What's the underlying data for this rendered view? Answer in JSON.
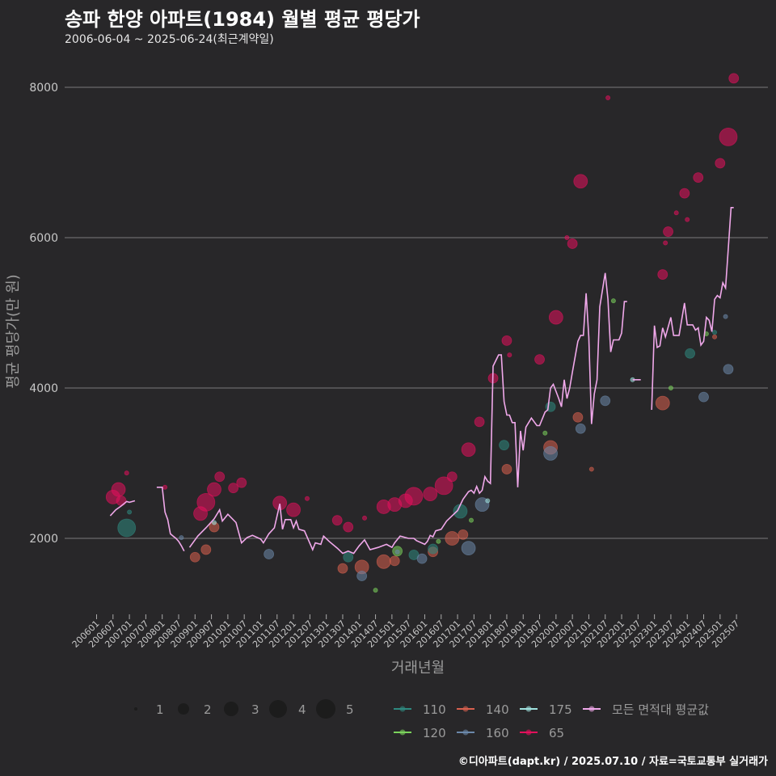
{
  "header": {
    "title": "송파 한양 아파트(1984) 월별 평균 평당가",
    "subtitle": "2006-06-04 ~ 2025-06-24(최근계약일)"
  },
  "footer": "©디아파트(dapt.kr) / 2025.07.10 / 자료=국토교통부 실거래가",
  "chart_data": {
    "type": "scatter",
    "title": "송파 한양 아파트(1984) 월별 평균 평당가",
    "xlabel": "거래년월",
    "ylabel": "평균 평당가(만 원)",
    "ylim": [
      1000,
      8300
    ],
    "xlim": [
      "2005-12",
      "2025-08"
    ],
    "grid": "horizontal",
    "y_ticks": [
      "2000",
      "4000",
      "6000",
      "8000"
    ],
    "x_ticks": [
      "200601",
      "200607",
      "200701",
      "200707",
      "200801",
      "200807",
      "200901",
      "200907",
      "201001",
      "201007",
      "201101",
      "201107",
      "201201",
      "201207",
      "201301",
      "201307",
      "201401",
      "201407",
      "201501",
      "201507",
      "201601",
      "201607",
      "201701",
      "201707",
      "201801",
      "201807",
      "201901",
      "201907",
      "202001",
      "202007",
      "202101",
      "202107",
      "202201",
      "202207",
      "202301",
      "202307",
      "202401",
      "202407",
      "202501",
      "202507"
    ],
    "size_legend": {
      "labels": [
        "1",
        "2",
        "3",
        "4",
        "5"
      ],
      "values": [
        1,
        2,
        3,
        4,
        5
      ]
    },
    "area_legend": [
      {
        "name": "110",
        "color": "#2e8a80"
      },
      {
        "name": "140",
        "color": "#d9604f"
      },
      {
        "name": "175",
        "color": "#a0e3e0"
      },
      {
        "name": "모든 면적대 평균값",
        "color": "#f0a8ea"
      },
      {
        "name": "120",
        "color": "#7bd35c"
      },
      {
        "name": "160",
        "color": "#6b88aa"
      },
      {
        "name": "65",
        "color": "#e3105c"
      }
    ],
    "avg_line": {
      "name": "모든 면적대 평균값",
      "points": [
        [
          "2006-06",
          2300
        ],
        [
          "2006-08",
          2380
        ],
        [
          "2006-10",
          2430
        ],
        [
          "2006-12",
          2490
        ],
        [
          "2007-01",
          2480
        ],
        [
          "2007-03",
          2500
        ],
        null,
        [
          "2007-11",
          2680
        ],
        [
          "2007-12",
          2680
        ],
        [
          "2008-01",
          2680
        ],
        [
          "2008-02",
          2350
        ],
        [
          "2008-03",
          2250
        ],
        [
          "2008-04",
          2060
        ],
        [
          "2008-05",
          2030
        ],
        [
          "2008-06",
          2000
        ],
        [
          "2008-07",
          1960
        ],
        [
          "2008-08",
          1900
        ],
        [
          "2008-09",
          1830
        ],
        null,
        [
          "2008-11",
          1880
        ],
        [
          "2009-02",
          2030
        ],
        [
          "2009-05",
          2140
        ],
        [
          "2009-08",
          2260
        ],
        [
          "2009-10",
          2380
        ],
        [
          "2009-11",
          2230
        ],
        [
          "2010-01",
          2320
        ],
        [
          "2010-04",
          2210
        ],
        [
          "2010-06",
          1940
        ],
        [
          "2010-08",
          2010
        ],
        [
          "2010-10",
          2040
        ],
        [
          "2011-01",
          1990
        ],
        [
          "2011-02",
          1940
        ],
        [
          "2011-04",
          2060
        ],
        [
          "2011-06",
          2140
        ],
        [
          "2011-08",
          2460
        ],
        [
          "2011-09",
          2120
        ],
        [
          "2011-10",
          2250
        ],
        [
          "2011-12",
          2250
        ],
        [
          "2012-01",
          2140
        ],
        [
          "2012-02",
          2230
        ],
        [
          "2012-03",
          2120
        ],
        [
          "2012-05",
          2100
        ],
        [
          "2012-08",
          1850
        ],
        [
          "2012-09",
          1940
        ],
        [
          "2012-11",
          1920
        ],
        [
          "2012-12",
          2030
        ],
        [
          "2013-02",
          1960
        ],
        [
          "2013-05",
          1870
        ],
        [
          "2013-07",
          1800
        ],
        [
          "2013-09",
          1830
        ],
        [
          "2013-11",
          1800
        ],
        [
          "2014-01",
          1900
        ],
        [
          "2014-03",
          1980
        ],
        [
          "2014-05",
          1850
        ],
        [
          "2014-08",
          1880
        ],
        [
          "2014-11",
          1920
        ],
        [
          "2015-01",
          1880
        ],
        [
          "2015-02",
          1940
        ],
        [
          "2015-04",
          2030
        ],
        [
          "2015-07",
          2000
        ],
        [
          "2015-09",
          2000
        ],
        [
          "2015-10",
          1970
        ],
        [
          "2016-01",
          1920
        ],
        [
          "2016-02",
          1960
        ],
        [
          "2016-03",
          2040
        ],
        [
          "2016-04",
          2020
        ],
        [
          "2016-05",
          2100
        ],
        [
          "2016-07",
          2120
        ],
        [
          "2016-09",
          2230
        ],
        [
          "2016-11",
          2300
        ],
        [
          "2017-01",
          2370
        ],
        [
          "2017-03",
          2520
        ],
        [
          "2017-05",
          2620
        ],
        [
          "2017-06",
          2640
        ],
        [
          "2017-07",
          2600
        ],
        [
          "2017-08",
          2690
        ],
        [
          "2017-09",
          2600
        ],
        [
          "2017-10",
          2640
        ],
        [
          "2017-11",
          2820
        ],
        [
          "2017-12",
          2760
        ],
        [
          "2018-01",
          2730
        ],
        [
          "2018-02",
          4290
        ],
        [
          "2018-04",
          4440
        ],
        [
          "2018-05",
          4440
        ],
        [
          "2018-06",
          3820
        ],
        [
          "2018-07",
          3640
        ],
        [
          "2018-08",
          3640
        ],
        [
          "2018-09",
          3540
        ],
        [
          "2018-10",
          3540
        ],
        [
          "2018-11",
          2680
        ],
        [
          "2018-12",
          3430
        ],
        [
          "2019-01",
          3170
        ],
        [
          "2019-02",
          3480
        ],
        [
          "2019-04",
          3600
        ],
        [
          "2019-06",
          3500
        ],
        [
          "2019-07",
          3500
        ],
        [
          "2019-09",
          3680
        ],
        [
          "2019-10",
          3710
        ],
        [
          "2019-11",
          4000
        ],
        [
          "2019-12",
          4050
        ],
        [
          "2020-02",
          3860
        ],
        [
          "2020-03",
          3750
        ],
        [
          "2020-04",
          4110
        ],
        [
          "2020-05",
          3860
        ],
        [
          "2020-06",
          4000
        ],
        [
          "2020-07",
          4210
        ],
        [
          "2020-09",
          4620
        ],
        [
          "2020-10",
          4700
        ],
        [
          "2020-11",
          4700
        ],
        [
          "2020-12",
          5260
        ],
        [
          "2021-01",
          4680
        ],
        [
          "2021-02",
          3520
        ],
        [
          "2021-03",
          3920
        ],
        [
          "2021-04",
          4110
        ],
        [
          "2021-05",
          5080
        ],
        [
          "2021-07",
          5530
        ],
        [
          "2021-08",
          5180
        ],
        [
          "2021-09",
          4480
        ],
        [
          "2021-10",
          4640
        ],
        [
          "2021-12",
          4640
        ],
        [
          "2022-01",
          4730
        ],
        [
          "2022-02",
          5150
        ],
        [
          "2022-03",
          5150
        ],
        null,
        [
          "2022-05",
          4110
        ],
        [
          "2022-08",
          4110
        ],
        null,
        [
          "2022-12",
          3710
        ],
        [
          "2023-01",
          4830
        ],
        [
          "2023-02",
          4540
        ],
        [
          "2023-03",
          4560
        ],
        [
          "2023-04",
          4800
        ],
        [
          "2023-05",
          4680
        ],
        [
          "2023-07",
          4940
        ],
        [
          "2023-08",
          4700
        ],
        [
          "2023-10",
          4700
        ],
        [
          "2023-12",
          5130
        ],
        [
          "2024-01",
          4840
        ],
        [
          "2024-03",
          4840
        ],
        [
          "2024-04",
          4770
        ],
        [
          "2024-05",
          4800
        ],
        [
          "2024-06",
          4570
        ],
        [
          "2024-07",
          4620
        ],
        [
          "2024-08",
          4940
        ],
        [
          "2024-09",
          4900
        ],
        [
          "2024-10",
          4750
        ],
        [
          "2024-11",
          5180
        ],
        [
          "2024-12",
          5230
        ],
        [
          "2025-01",
          5200
        ],
        [
          "2025-02",
          5400
        ],
        [
          "2025-03",
          5330
        ],
        [
          "2025-04",
          5860
        ],
        [
          "2025-05",
          6400
        ],
        [
          "2025-06",
          6400
        ]
      ]
    },
    "series": [
      {
        "name": "65",
        "points": [
          [
            "2006-07",
            2550,
            3
          ],
          [
            "2006-09",
            2650,
            3
          ],
          [
            "2006-10",
            2500,
            2
          ],
          [
            "2006-12",
            2870,
            1
          ],
          [
            "2008-02",
            2680,
            1
          ],
          [
            "2009-03",
            2330,
            3
          ],
          [
            "2009-05",
            2480,
            4
          ],
          [
            "2009-08",
            2650,
            3
          ],
          [
            "2009-10",
            2820,
            2
          ],
          [
            "2010-03",
            2670,
            2
          ],
          [
            "2010-06",
            2740,
            2
          ],
          [
            "2011-08",
            2470,
            3
          ],
          [
            "2012-01",
            2380,
            3
          ],
          [
            "2012-06",
            2530,
            1
          ],
          [
            "2013-05",
            2240,
            2
          ],
          [
            "2013-09",
            2150,
            2
          ],
          [
            "2014-03",
            2270,
            1
          ],
          [
            "2014-10",
            2420,
            3
          ],
          [
            "2015-02",
            2450,
            3
          ],
          [
            "2015-06",
            2500,
            3
          ],
          [
            "2015-09",
            2560,
            4
          ],
          [
            "2016-03",
            2590,
            3
          ],
          [
            "2016-08",
            2700,
            4
          ],
          [
            "2016-11",
            2820,
            2
          ],
          [
            "2017-05",
            3180,
            3
          ],
          [
            "2017-09",
            3550,
            2
          ],
          [
            "2018-02",
            4130,
            2
          ],
          [
            "2018-07",
            4630,
            2
          ],
          [
            "2018-08",
            4440,
            1
          ],
          [
            "2019-07",
            4380,
            2
          ],
          [
            "2020-01",
            4940,
            3
          ],
          [
            "2020-05",
            6000,
            1
          ],
          [
            "2020-07",
            5920,
            2
          ],
          [
            "2020-10",
            6750,
            3
          ],
          [
            "2021-08",
            7860,
            1
          ],
          [
            "2023-04",
            5510,
            2
          ],
          [
            "2023-05",
            5930,
            1
          ],
          [
            "2023-06",
            6080,
            2
          ],
          [
            "2023-09",
            6330,
            1
          ],
          [
            "2023-12",
            6590,
            2
          ],
          [
            "2024-01",
            6240,
            1
          ],
          [
            "2024-05",
            6800,
            2
          ],
          [
            "2025-01",
            6990,
            2
          ],
          [
            "2025-04",
            7340,
            4
          ],
          [
            "2025-06",
            8120,
            2
          ]
        ]
      },
      {
        "name": "140",
        "points": [
          [
            "2009-01",
            1750,
            2
          ],
          [
            "2009-05",
            1850,
            2
          ],
          [
            "2009-08",
            2150,
            2
          ],
          [
            "2013-07",
            1600,
            2
          ],
          [
            "2014-02",
            1620,
            3
          ],
          [
            "2014-10",
            1690,
            3
          ],
          [
            "2015-02",
            1700,
            2
          ],
          [
            "2016-04",
            1820,
            2
          ],
          [
            "2016-11",
            2000,
            3
          ],
          [
            "2017-03",
            2050,
            2
          ],
          [
            "2018-07",
            2920,
            2
          ],
          [
            "2019-11",
            3210,
            3
          ],
          [
            "2020-09",
            3610,
            2
          ],
          [
            "2021-02",
            2920,
            1
          ],
          [
            "2023-04",
            3800,
            3
          ],
          [
            "2024-11",
            4680,
            1
          ]
        ]
      },
      {
        "name": "110",
        "points": [
          [
            "2006-12",
            2140,
            4
          ],
          [
            "2007-01",
            2350,
            1
          ],
          [
            "2013-09",
            1750,
            2
          ],
          [
            "2015-09",
            1780,
            2
          ],
          [
            "2016-04",
            1860,
            2
          ],
          [
            "2017-02",
            2360,
            3
          ],
          [
            "2018-06",
            3240,
            2
          ],
          [
            "2019-11",
            3750,
            2
          ],
          [
            "2024-02",
            4460,
            2
          ],
          [
            "2024-11",
            4740,
            1
          ]
        ]
      },
      {
        "name": "120",
        "points": [
          [
            "2014-07",
            1310,
            1
          ],
          [
            "2015-03",
            1830,
            2
          ],
          [
            "2016-06",
            1960,
            1
          ],
          [
            "2017-06",
            2240,
            1
          ],
          [
            "2019-09",
            3400,
            1
          ],
          [
            "2021-10",
            5160,
            1
          ],
          [
            "2023-07",
            4000,
            1
          ],
          [
            "2024-08",
            4720,
            1
          ]
        ]
      },
      {
        "name": "160",
        "points": [
          [
            "2008-08",
            2010,
            1
          ],
          [
            "2011-04",
            1790,
            2
          ],
          [
            "2014-02",
            1500,
            2
          ],
          [
            "2015-03",
            1820,
            1
          ],
          [
            "2015-12",
            1730,
            2
          ],
          [
            "2017-05",
            1870,
            3
          ],
          [
            "2017-10",
            2450,
            3
          ],
          [
            "2019-11",
            3130,
            3
          ],
          [
            "2020-10",
            3460,
            2
          ],
          [
            "2021-07",
            3830,
            2
          ],
          [
            "2024-07",
            3880,
            2
          ],
          [
            "2025-03",
            4950,
            1
          ],
          [
            "2025-04",
            4250,
            2
          ]
        ]
      },
      {
        "name": "175",
        "points": [
          [
            "2009-08",
            2210,
            1
          ],
          [
            "2017-12",
            2500,
            1
          ],
          [
            "2022-05",
            4110,
            1
          ]
        ]
      }
    ]
  }
}
